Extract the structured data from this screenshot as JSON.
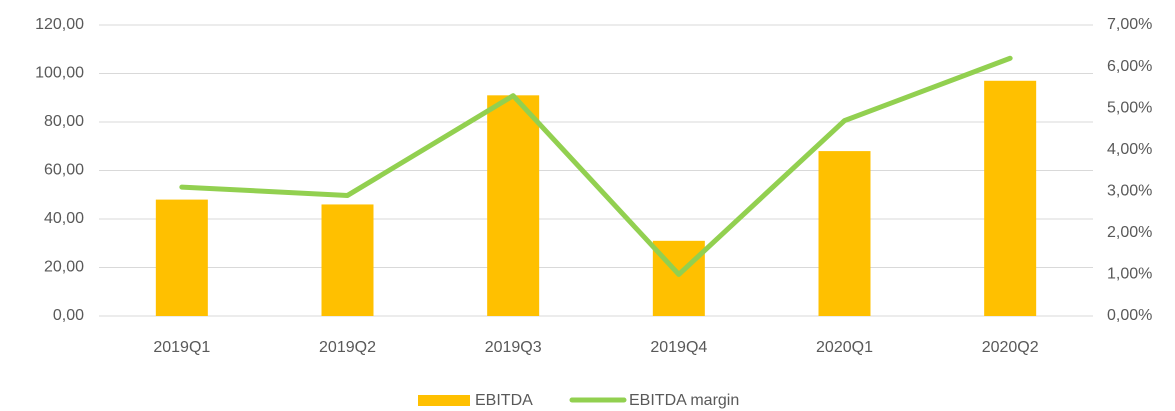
{
  "chart_data": {
    "type": "bar",
    "categories": [
      "2019Q1",
      "2019Q2",
      "2019Q3",
      "2019Q4",
      "2020Q1",
      "2020Q2"
    ],
    "series": [
      {
        "name": "EBITDA",
        "type": "bar",
        "color": "#ffc000",
        "values": [
          48,
          46,
          91,
          31,
          68,
          97
        ]
      },
      {
        "name": "EBITDA margin",
        "type": "line",
        "axis": "y2",
        "color": "#92d050",
        "values": [
          3.1,
          2.9,
          5.3,
          1.0,
          4.7,
          6.2
        ]
      }
    ],
    "ylim": [
      0,
      120
    ],
    "yticks": [
      {
        "value": 0,
        "label": "0,00"
      },
      {
        "value": 20,
        "label": "20,00"
      },
      {
        "value": 40,
        "label": "40,00"
      },
      {
        "value": 60,
        "label": "60,00"
      },
      {
        "value": 80,
        "label": "80,00"
      },
      {
        "value": 100,
        "label": "100,00"
      },
      {
        "value": 120,
        "label": "120,00"
      }
    ],
    "y2lim": [
      0,
      7
    ],
    "y2ticks": [
      {
        "value": 0,
        "label": "0,00%"
      },
      {
        "value": 1,
        "label": "1,00%"
      },
      {
        "value": 2,
        "label": "2,00%"
      },
      {
        "value": 3,
        "label": "3,00%"
      },
      {
        "value": 4,
        "label": "4,00%"
      },
      {
        "value": 5,
        "label": "5,00%"
      },
      {
        "value": 6,
        "label": "6,00%"
      },
      {
        "value": 7,
        "label": "7,00%"
      }
    ],
    "grid": true,
    "legend": "bottom"
  }
}
